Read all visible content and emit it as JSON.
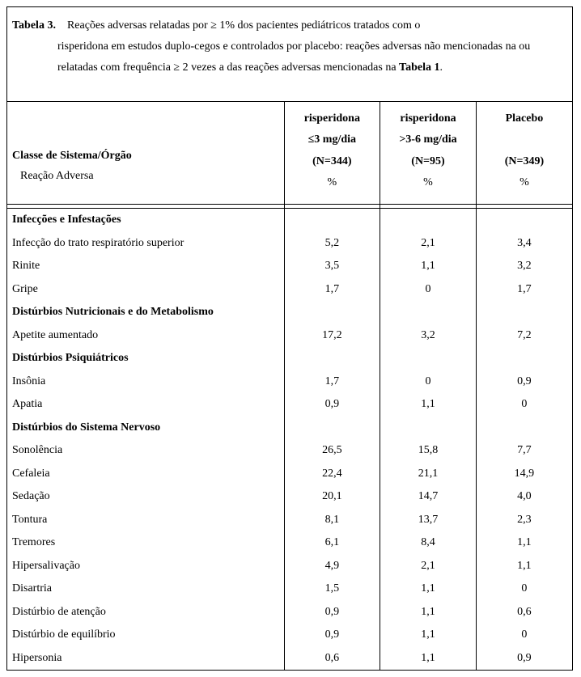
{
  "title": {
    "label": "Tabela 3.",
    "line1": "Reações adversas relatadas por ≥ 1% dos pacientes pediátricos tratados com o",
    "line2": "risperidona  em estudos duplo-cegos e controlados por placebo: reações adversas não mencionadas na ou",
    "line3": "relatadas com frequência ≥ 2 vezes a das reações adversas mencionadas na ",
    "ref": "Tabela 1",
    "tail": "."
  },
  "header": {
    "class_label": "Classe de Sistema/Órgão",
    "sub_label": "Reação Adversa",
    "pct": "%",
    "colA": {
      "drug": "risperidona",
      "dose": "≤3 mg/dia",
      "n": "(N=344)"
    },
    "colB": {
      "drug": "risperidona",
      "dose": ">3-6 mg/dia",
      "n": "(N=95)"
    },
    "colC": {
      "drug": "Placebo",
      "dose": "",
      "n": "(N=349)"
    }
  },
  "sections": [
    {
      "name": "Infecções e Infestações",
      "rows": [
        {
          "label": "Infecção do trato respiratório superior",
          "a": "5,2",
          "b": "2,1",
          "c": "3,4"
        },
        {
          "label": "Rinite",
          "a": "3,5",
          "b": "1,1",
          "c": "3,2"
        },
        {
          "label": "Gripe",
          "a": "1,7",
          "b": "0",
          "c": "1,7"
        }
      ]
    },
    {
      "name": "Distúrbios Nutricionais e do Metabolismo",
      "rows": [
        {
          "label": "Apetite aumentado",
          "a": "17,2",
          "b": "3,2",
          "c": "7,2"
        }
      ]
    },
    {
      "name": "Distúrbios Psiquiátricos",
      "indent_header": true,
      "rows": [
        {
          "label": "Insônia",
          "a": "1,7",
          "b": "0",
          "c": "0,9"
        },
        {
          "label": "Apatia",
          "a": "0,9",
          "b": "1,1",
          "c": "0"
        }
      ]
    },
    {
      "name": "Distúrbios do Sistema Nervoso",
      "rows": [
        {
          "label": "Sonolência",
          "a": "26,5",
          "b": "15,8",
          "c": "7,7"
        },
        {
          "label": "Cefaleia",
          "a": "22,4",
          "b": "21,1",
          "c": "14,9"
        },
        {
          "label": "Sedação",
          "a": "20,1",
          "b": "14,7",
          "c": "4,0"
        },
        {
          "label": "Tontura",
          "a": "8,1",
          "b": "13,7",
          "c": "2,3"
        },
        {
          "label": "Tremores",
          "a": "6,1",
          "b": "8,4",
          "c": "1,1"
        },
        {
          "label": "Hipersalivação",
          "a": "4,9",
          "b": "2,1",
          "c": "1,1"
        },
        {
          "label": "Disartria",
          "a": "1,5",
          "b": "1,1",
          "c": "0"
        },
        {
          "label": "Distúrbio de atenção",
          "a": "0,9",
          "b": "1,1",
          "c": "0,6"
        },
        {
          "label": "Distúrbio de equilíbrio",
          "a": "0,9",
          "b": "1,1",
          "c": "0"
        },
        {
          "label": "Hipersonia",
          "a": "0,6",
          "b": "1,1",
          "c": "0,9"
        }
      ]
    }
  ]
}
